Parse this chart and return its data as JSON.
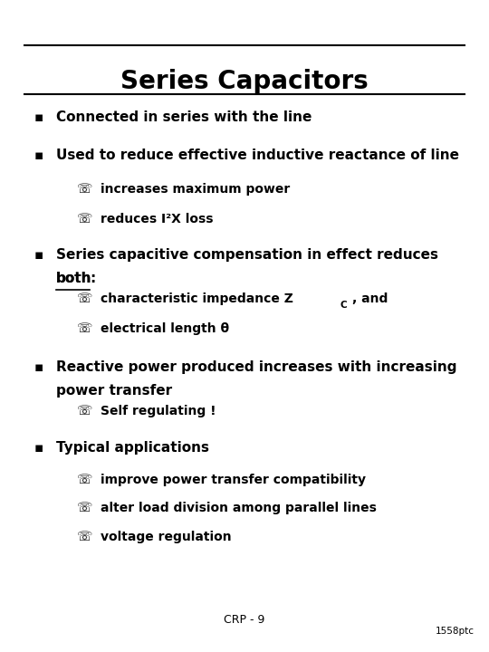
{
  "title": "Series Capacitors",
  "background_color": "#ffffff",
  "text_color": "#000000",
  "title_fontsize": 20,
  "footer_left": "CRP - 9",
  "footer_right": "1558ptc",
  "bullet_char": "▪",
  "sub_bullet_char": "☏"
}
